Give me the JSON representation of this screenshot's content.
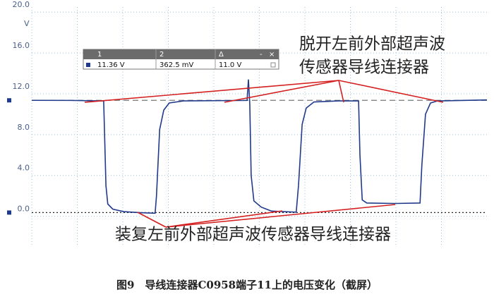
{
  "chart_data": {
    "type": "line",
    "y_unit": "V",
    "x": [
      0,
      8.5,
      15.8,
      16.0,
      16.3,
      16.7,
      17.8,
      20.2,
      24.0,
      27.1,
      27.4,
      28.1,
      29.0,
      30.2,
      33.3,
      47.3,
      47.6,
      47.9,
      48.2,
      48.8,
      50.4,
      52.7,
      58.1,
      58.6,
      59.4,
      60.3,
      62.0,
      67.4,
      71.8,
      72.1,
      72.6,
      73.6,
      79.8,
      85.3,
      85.7,
      86.5,
      87.6,
      89.1,
      100
    ],
    "series": [
      {
        "name": "1",
        "color": "#1f3a8a",
        "values": [
          11.36,
          11.35,
          11.3,
          8,
          3,
          1.2,
          0.7,
          0.45,
          0.35,
          0.3,
          2,
          8.5,
          10.4,
          11.1,
          11.3,
          11.35,
          13.4,
          11,
          4,
          1.5,
          0.9,
          0.5,
          0.4,
          3,
          9,
          10.6,
          11.2,
          11.3,
          11.3,
          6,
          1.6,
          1.3,
          1.25,
          1.3,
          5,
          10,
          11.1,
          11.3,
          11.4
        ]
      }
    ],
    "xlim": [
      0,
      100
    ],
    "xticks": [
      10,
      20,
      30,
      40,
      50,
      60,
      70,
      80,
      90
    ],
    "ylim": [
      -3,
      20.5
    ],
    "yticks": [
      {
        "value": 0,
        "label": "0.0"
      },
      {
        "value": 4,
        "label": "4.0"
      },
      {
        "value": 8,
        "label": "8.0"
      },
      {
        "value": 12,
        "label": "12.0"
      },
      {
        "value": 16,
        "label": "16.0"
      },
      {
        "value": 20,
        "label": "20.0"
      }
    ],
    "grid": true,
    "cursors": [
      11.36,
      0.3625
    ],
    "readout": {
      "headers": [
        "1",
        "2",
        "Δ"
      ],
      "values": [
        "11.36 V",
        "362.5 mV",
        "11.0 V"
      ]
    },
    "annotations": [
      "脱开左前外部超声波",
      "传感器导线连接器",
      "装复左前外部超声波传感器导线连接器"
    ],
    "caption": "图9　导线连接器C0958端子11上的电压变化（截屏）"
  }
}
